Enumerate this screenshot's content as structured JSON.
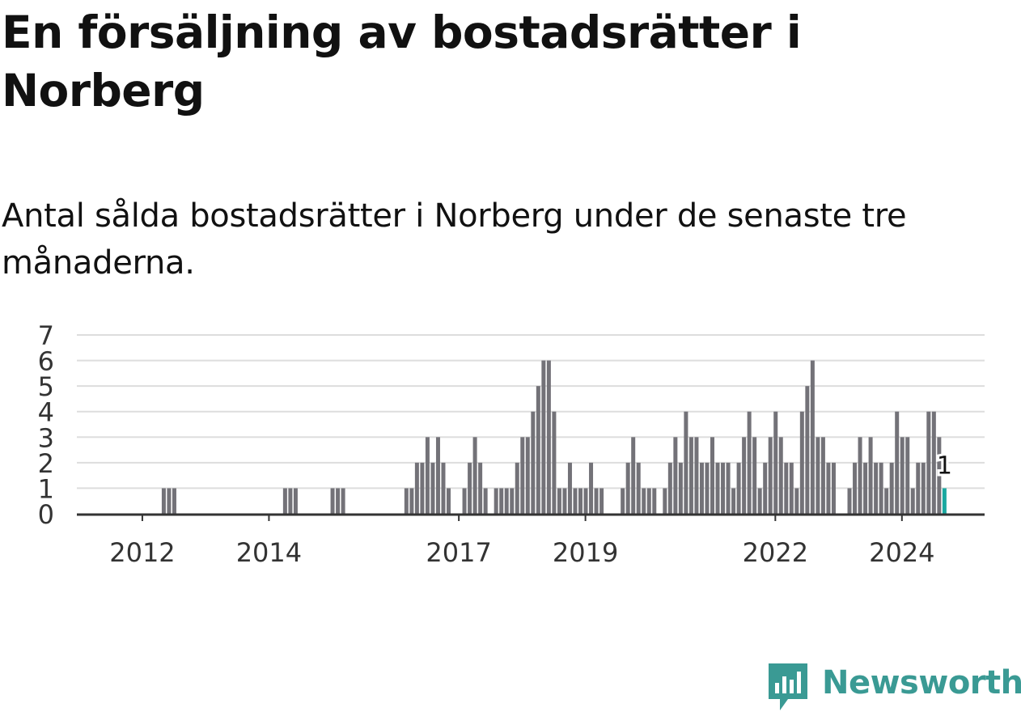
{
  "title": "En försäljning av bostadsrätter i Norberg",
  "subtitle": "Antal sålda bostadsrätter i Norberg under de senaste tre månaderna.",
  "brand": {
    "name": "Newsworthy",
    "color": "#3a9a94",
    "icon": "newsworthy-chart-bubble-icon"
  },
  "colors": {
    "bar": "#737278",
    "highlight": "#1aa8a0",
    "grid": "#dddddd",
    "axis": "#333333"
  },
  "chart_data": {
    "type": "bar",
    "ylim": [
      0,
      7
    ],
    "yticks": [
      "0",
      "1",
      "2",
      "3",
      "4",
      "5",
      "6",
      "7"
    ],
    "x_ticks": [
      "2012",
      "2014",
      "2017",
      "2019",
      "2022",
      "2024"
    ],
    "grid": true,
    "highlight_label": "1",
    "values": [
      0,
      0,
      0,
      0,
      0,
      0,
      0,
      0,
      0,
      0,
      0,
      0,
      0,
      0,
      0,
      0,
      1,
      1,
      1,
      0,
      0,
      0,
      0,
      0,
      0,
      0,
      0,
      0,
      0,
      0,
      0,
      0,
      0,
      0,
      0,
      0,
      0,
      0,
      0,
      1,
      1,
      1,
      0,
      0,
      0,
      0,
      0,
      0,
      1,
      1,
      1,
      0,
      0,
      0,
      0,
      0,
      0,
      0,
      0,
      0,
      0,
      0,
      1,
      1,
      2,
      2,
      3,
      2,
      3,
      2,
      1,
      0,
      0,
      1,
      2,
      3,
      2,
      1,
      0,
      1,
      1,
      1,
      1,
      2,
      3,
      3,
      4,
      5,
      6,
      6,
      4,
      1,
      1,
      2,
      1,
      1,
      1,
      2,
      1,
      1,
      0,
      0,
      0,
      1,
      2,
      3,
      2,
      1,
      1,
      1,
      0,
      1,
      2,
      3,
      2,
      4,
      3,
      3,
      2,
      2,
      3,
      2,
      2,
      2,
      1,
      2,
      3,
      4,
      3,
      1,
      2,
      3,
      4,
      3,
      2,
      2,
      1,
      4,
      5,
      6,
      3,
      3,
      2,
      2,
      0,
      0,
      1,
      2,
      3,
      2,
      3,
      2,
      2,
      1,
      2,
      4,
      3,
      3,
      1,
      2,
      2,
      4,
      4,
      3,
      1
    ]
  }
}
